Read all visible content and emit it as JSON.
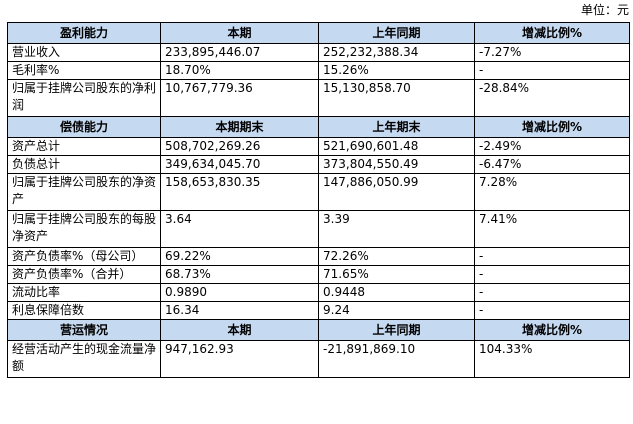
{
  "unit_label": "单位：元",
  "sections": [
    {
      "header": [
        "盈利能力",
        "本期",
        "上年同期",
        "增减比例%"
      ],
      "rows": [
        {
          "label": "营业收入",
          "v1": "233,895,446.07",
          "v2": "252,232,388.34",
          "v3": "-7.27%",
          "tall": false
        },
        {
          "label": "毛利率%",
          "v1": "18.70%",
          "v2": "15.26%",
          "v3": "-",
          "tall": false
        },
        {
          "label": "归属于挂牌公司股东的净利润",
          "v1": "10,767,779.36",
          "v2": "15,130,858.70",
          "v3": "-28.84%",
          "tall": true
        }
      ]
    },
    {
      "header": [
        "偿债能力",
        "本期期末",
        "上年期末",
        "增减比例%"
      ],
      "rows": [
        {
          "label": "资产总计",
          "v1": "508,702,269.26",
          "v2": "521,690,601.48",
          "v3": "-2.49%",
          "tall": false
        },
        {
          "label": "负债总计",
          "v1": "349,634,045.70",
          "v2": "373,804,550.49",
          "v3": "-6.47%",
          "tall": false
        },
        {
          "label": "归属于挂牌公司股东的净资产",
          "v1": "158,653,830.35",
          "v2": "147,886,050.99",
          "v3": "7.28%",
          "tall": true
        },
        {
          "label": "归属于挂牌公司股东的每股净资产",
          "v1": "3.64",
          "v2": "3.39",
          "v3": "7.41%",
          "tall": true
        },
        {
          "label": "资产负债率%（母公司）",
          "v1": "69.22%",
          "v2": "72.26%",
          "v3": "-",
          "tall": false
        },
        {
          "label": "资产负债率%（合并）",
          "v1": "68.73%",
          "v2": "71.65%",
          "v3": "-",
          "tall": false
        },
        {
          "label": "流动比率",
          "v1": "0.9890",
          "v2": "0.9448",
          "v3": "-",
          "tall": false
        },
        {
          "label": "利息保障倍数",
          "v1": "16.34",
          "v2": "9.24",
          "v3": "-",
          "tall": false
        }
      ]
    },
    {
      "header": [
        "营运情况",
        "本期",
        "上年同期",
        "增减比例%"
      ],
      "rows": [
        {
          "label": "经营活动产生的现金流量净额",
          "v1": "947,162.93",
          "v2": "-21,891,869.10",
          "v3": "104.33%",
          "tall": true
        }
      ]
    }
  ]
}
